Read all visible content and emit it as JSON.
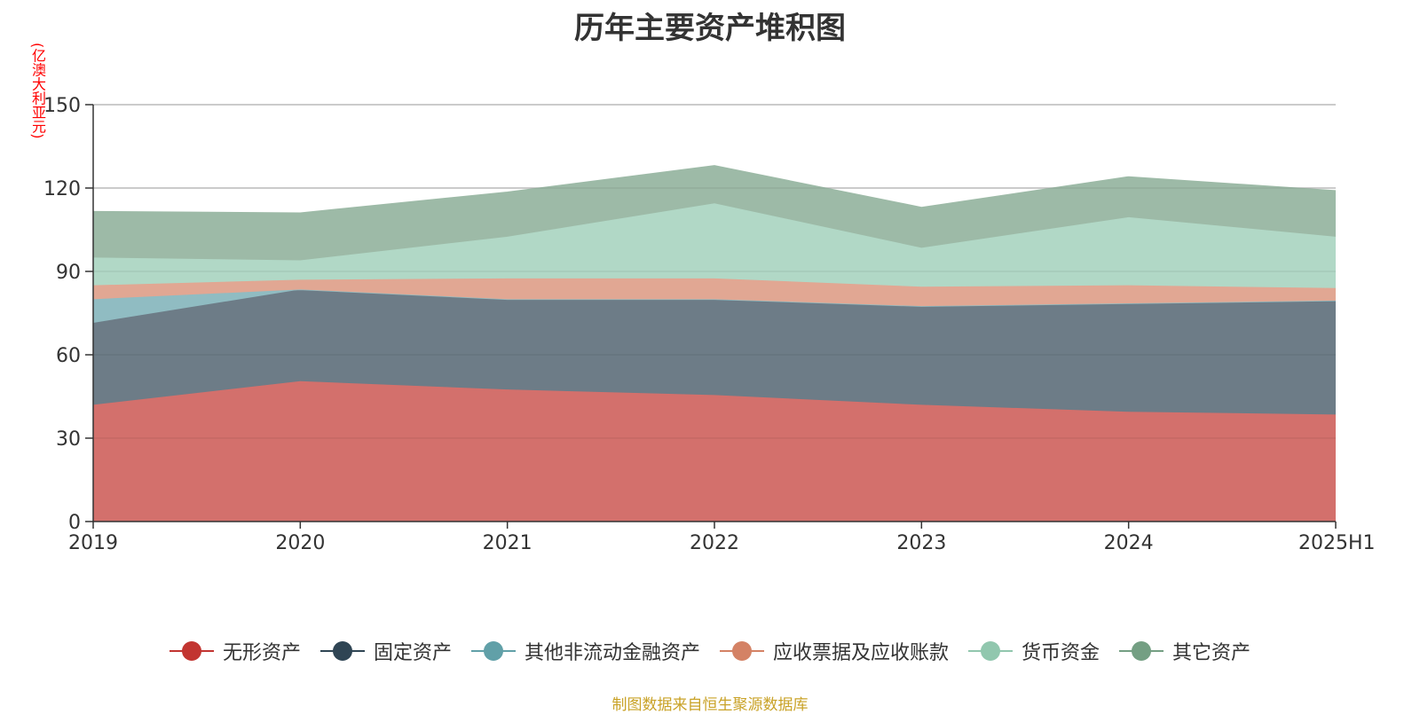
{
  "chart_data": {
    "type": "area",
    "stacked": true,
    "title": "历年主要资产堆积图",
    "ylabel": "(亿澳大利亚元)",
    "xlabel": "",
    "ylim": [
      0,
      150
    ],
    "yticks": [
      0,
      30,
      60,
      90,
      120,
      150
    ],
    "categories": [
      "2019",
      "2020",
      "2021",
      "2022",
      "2023",
      "2024",
      "2025H1"
    ],
    "series": [
      {
        "name": "无形资产",
        "color": "#c23531",
        "fill": "#d3706c",
        "values": [
          42,
          50.5,
          47.5,
          45.5,
          42,
          39.5,
          38.5
        ]
      },
      {
        "name": "固定资产",
        "color": "#2f4554",
        "fill": "#6d7c87",
        "values": [
          29.5,
          33,
          32.5,
          34.5,
          35.5,
          39,
          41
        ]
      },
      {
        "name": "其他非流动金融资产",
        "color": "#61a0a8",
        "fill": "#90bcc2",
        "values": [
          8.5,
          0,
          0,
          0,
          0,
          0,
          0
        ]
      },
      {
        "name": "应收票据及应收账款",
        "color": "#d48265",
        "fill": "#e1a793",
        "values": [
          5,
          3.5,
          7.5,
          7.5,
          7,
          6.5,
          4.5
        ]
      },
      {
        "name": "货币资金",
        "color": "#91c7ae",
        "fill": "#b1d8c6",
        "values": [
          10,
          7,
          15,
          27,
          14,
          24.5,
          18.5
        ]
      },
      {
        "name": "其它资产",
        "color": "#749f83",
        "fill": "#9dbaa7",
        "values": [
          16.5,
          17,
          16,
          13.5,
          14.5,
          14.5,
          16.5
        ]
      }
    ]
  },
  "source_note": "制图数据来自恒生聚源数据库"
}
